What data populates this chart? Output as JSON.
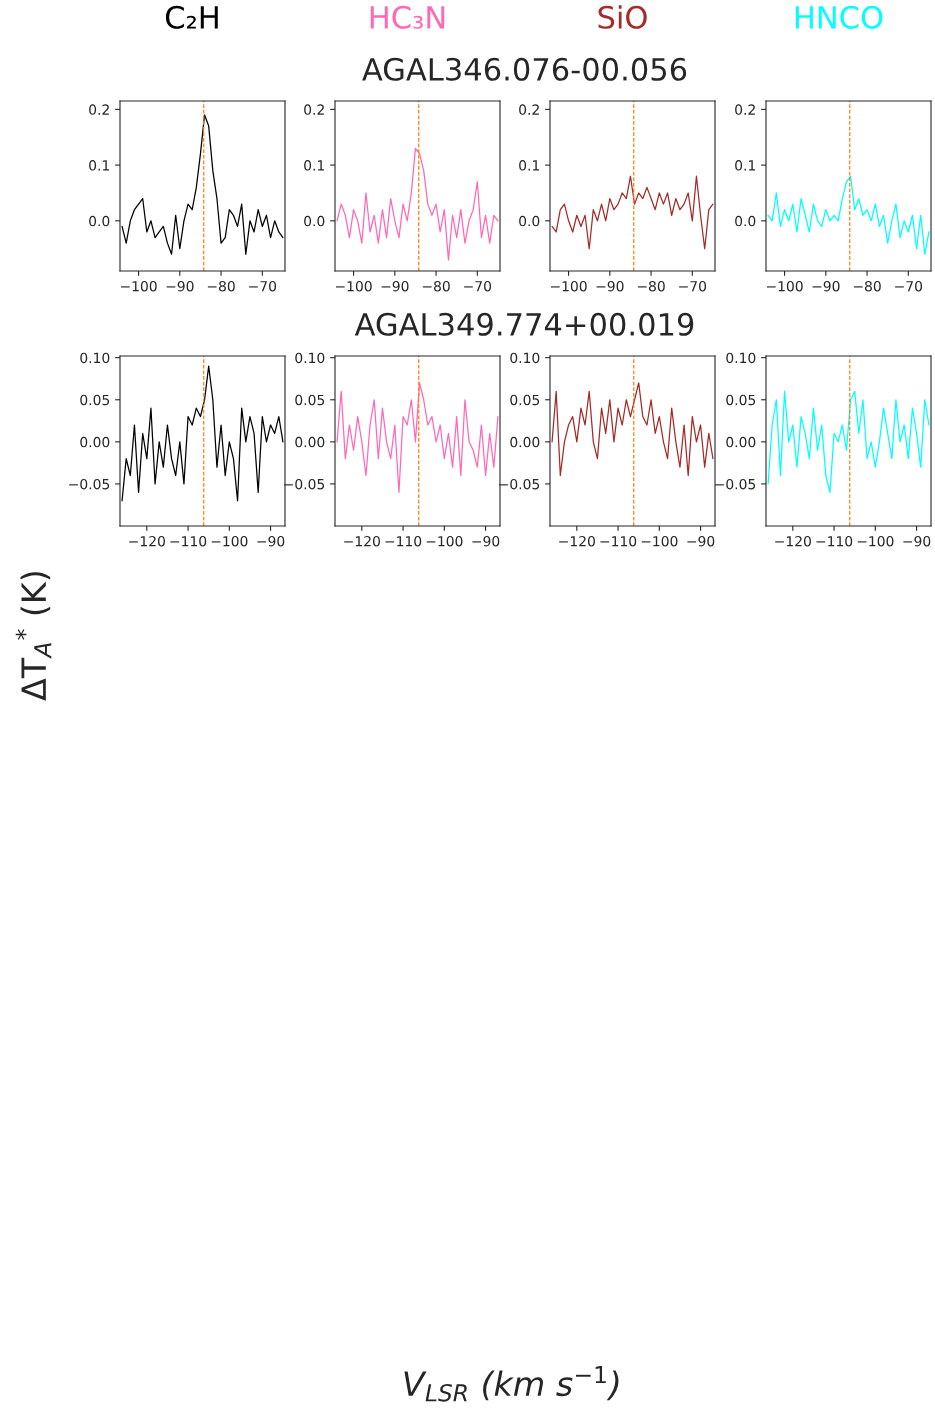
{
  "chart_data": [
    {
      "type": "line",
      "title": "C₂H",
      "xlabel": "V$_{LSR}$ (km s$^{−1}$)",
      "xlim": [
        -104.5,
        -64.5
      ],
      "ylim": [
        -0.09,
        0.215
      ],
      "xticks": [
        {
          "value": -100,
          "label": "−100"
        },
        {
          "value": -90,
          "label": "−90"
        },
        {
          "value": -80,
          "label": "−80"
        },
        {
          "value": -70,
          "label": "−70"
        }
      ],
      "yticks": [
        {
          "value": 0,
          "label": "0.0"
        },
        {
          "value": 0.1,
          "label": "0.1"
        },
        {
          "value": 0.2,
          "label": "0.2"
        }
      ],
      "grid": false,
      "line_style": "solid",
      "ref_lines": [
        {
          "axis": "x",
          "value": -84.2,
          "color": "#ff7f0e",
          "line_style": "dashed"
        }
      ],
      "x": [
        -104,
        -103,
        -102,
        -101,
        -100,
        -99,
        -98,
        -97,
        -96,
        -95,
        -94,
        -93,
        -92,
        -91,
        -90,
        -89,
        -88,
        -87,
        -86,
        -85,
        -84,
        -83,
        -82,
        -81,
        -80,
        -79,
        -78,
        -77,
        -76,
        -75,
        -74,
        -73,
        -72,
        -71,
        -70,
        -69,
        -68,
        -67,
        -66,
        -65
      ],
      "series": [
        {
          "color": "#000000",
          "values": [
            -0.01,
            -0.04,
            0.0,
            0.02,
            0.03,
            0.04,
            -0.02,
            0.0,
            -0.03,
            -0.02,
            -0.01,
            -0.04,
            -0.06,
            0.01,
            -0.05,
            0.0,
            0.03,
            0.02,
            0.06,
            0.12,
            0.19,
            0.17,
            0.09,
            0.04,
            -0.04,
            -0.03,
            0.02,
            0.01,
            -0.01,
            0.03,
            -0.06,
            0.0,
            -0.02,
            0.02,
            -0.01,
            0.01,
            -0.03,
            0.0,
            -0.02,
            -0.03
          ]
        }
      ]
    },
    {
      "type": "line",
      "title": "HC₃N",
      "subtitle": "AGAL346.076-00.056",
      "xlim": [
        -104.5,
        -64.5
      ],
      "ylim": [
        -0.09,
        0.215
      ],
      "xticks": [
        {
          "value": -100,
          "label": "−100"
        },
        {
          "value": -90,
          "label": "−90"
        },
        {
          "value": -80,
          "label": "−80"
        },
        {
          "value": -70,
          "label": "−70"
        }
      ],
      "yticks": [
        {
          "value": 0,
          "label": "0.0"
        },
        {
          "value": 0.1,
          "label": "0.1"
        },
        {
          "value": 0.2,
          "label": "0.2"
        }
      ],
      "grid": false,
      "line_style": "solid",
      "ref_lines": [
        {
          "axis": "x",
          "value": -84.2,
          "color": "#ff7f0e",
          "line_style": "dashed"
        }
      ],
      "x": [
        -104,
        -103,
        -102,
        -101,
        -100,
        -99,
        -98,
        -97,
        -96,
        -95,
        -94,
        -93,
        -92,
        -91,
        -90,
        -89,
        -88,
        -87,
        -86,
        -85,
        -84,
        -83,
        -82,
        -81,
        -80,
        -79,
        -78,
        -77,
        -76,
        -75,
        -74,
        -73,
        -72,
        -71,
        -70,
        -69,
        -68,
        -67,
        -66,
        -65
      ],
      "series": [
        {
          "color": "#ff69b4",
          "values": [
            0.0,
            0.03,
            0.01,
            -0.03,
            0.02,
            0.0,
            -0.04,
            0.05,
            -0.02,
            0.01,
            -0.04,
            0.02,
            -0.03,
            0.04,
            0.0,
            -0.03,
            0.03,
            0.0,
            0.05,
            0.13,
            0.12,
            0.09,
            0.03,
            0.01,
            0.03,
            -0.02,
            0.02,
            -0.07,
            0.01,
            -0.03,
            0.02,
            -0.04,
            0.0,
            0.02,
            0.07,
            -0.03,
            0.01,
            -0.04,
            0.01,
            0.0
          ]
        }
      ]
    },
    {
      "type": "line",
      "title": "SiO",
      "xlim": [
        -104.5,
        -64.5
      ],
      "ylim": [
        -0.09,
        0.215
      ],
      "xticks": [
        {
          "value": -100,
          "label": "−100"
        },
        {
          "value": -90,
          "label": "−90"
        },
        {
          "value": -80,
          "label": "−80"
        },
        {
          "value": -70,
          "label": "−70"
        }
      ],
      "yticks": [
        {
          "value": 0,
          "label": "0.0"
        },
        {
          "value": 0.1,
          "label": "0.1"
        },
        {
          "value": 0.2,
          "label": "0.2"
        }
      ],
      "grid": false,
      "line_style": "solid",
      "ref_lines": [
        {
          "axis": "x",
          "value": -84.2,
          "color": "#ff7f0e",
          "line_style": "dashed"
        }
      ],
      "x": [
        -104,
        -103,
        -102,
        -101,
        -100,
        -99,
        -98,
        -97,
        -96,
        -95,
        -94,
        -93,
        -92,
        -91,
        -90,
        -89,
        -88,
        -87,
        -86,
        -85,
        -84,
        -83,
        -82,
        -81,
        -80,
        -79,
        -78,
        -77,
        -76,
        -75,
        -74,
        -73,
        -72,
        -71,
        -70,
        -69,
        -68,
        -67,
        -66,
        -65
      ],
      "series": [
        {
          "color": "#a52a2a",
          "values": [
            -0.01,
            -0.02,
            0.02,
            0.03,
            0.0,
            -0.02,
            0.01,
            -0.01,
            0.01,
            -0.05,
            0.02,
            0.0,
            0.03,
            0.0,
            0.04,
            0.02,
            0.03,
            0.05,
            0.04,
            0.08,
            0.03,
            0.05,
            0.04,
            0.06,
            0.04,
            0.02,
            0.05,
            0.03,
            0.05,
            0.01,
            0.04,
            0.02,
            0.03,
            0.05,
            0.0,
            0.08,
            0.01,
            -0.05,
            0.02,
            0.03
          ]
        }
      ]
    },
    {
      "type": "line",
      "title": "HNCO",
      "xlim": [
        -104.5,
        -64.5
      ],
      "ylim": [
        -0.09,
        0.215
      ],
      "xticks": [
        {
          "value": -100,
          "label": "−100"
        },
        {
          "value": -90,
          "label": "−90"
        },
        {
          "value": -80,
          "label": "−80"
        },
        {
          "value": -70,
          "label": "−70"
        }
      ],
      "yticks": [
        {
          "value": 0,
          "label": "0.0"
        },
        {
          "value": 0.1,
          "label": "0.1"
        },
        {
          "value": 0.2,
          "label": "0.2"
        }
      ],
      "grid": false,
      "line_style": "solid",
      "ref_lines": [
        {
          "axis": "x",
          "value": -84.2,
          "color": "#ff7f0e",
          "line_style": "dashed"
        }
      ],
      "x": [
        -104,
        -103,
        -102,
        -101,
        -100,
        -99,
        -98,
        -97,
        -96,
        -95,
        -94,
        -93,
        -92,
        -91,
        -90,
        -89,
        -88,
        -87,
        -86,
        -85,
        -84,
        -83,
        -82,
        -81,
        -80,
        -79,
        -78,
        -77,
        -76,
        -75,
        -74,
        -73,
        -72,
        -71,
        -70,
        -69,
        -68,
        -67,
        -66,
        -65
      ],
      "series": [
        {
          "color": "#00ffff",
          "values": [
            0.01,
            0.0,
            0.05,
            -0.01,
            0.02,
            0.0,
            0.03,
            -0.02,
            0.04,
            0.01,
            -0.02,
            0.03,
            0.0,
            -0.01,
            0.02,
            0.0,
            0.01,
            0.0,
            0.04,
            0.07,
            0.08,
            0.02,
            0.04,
            0.01,
            0.02,
            0.0,
            0.03,
            -0.01,
            0.01,
            -0.04,
            0.0,
            0.03,
            -0.03,
            0.0,
            -0.02,
            0.01,
            -0.05,
            0.01,
            -0.06,
            -0.02
          ]
        }
      ]
    },
    {
      "type": "line",
      "ylabel": "ΔT$_{A}$$^{*}$ (K)",
      "xlim": [
        -126.5,
        -86.5
      ],
      "ylim": [
        -0.1,
        0.102
      ],
      "xticks": [
        {
          "value": -120,
          "label": "−120"
        },
        {
          "value": -110,
          "label": "−110"
        },
        {
          "value": -100,
          "label": "−100"
        },
        {
          "value": -90,
          "label": "−90"
        }
      ],
      "yticks": [
        {
          "value": -0.05,
          "label": "−0.05"
        },
        {
          "value": 0,
          "label": "0.00"
        },
        {
          "value": 0.05,
          "label": "0.05"
        },
        {
          "value": 0.1,
          "label": "0.10"
        }
      ],
      "grid": false,
      "line_style": "solid",
      "ref_lines": [
        {
          "axis": "x",
          "value": -106.2,
          "color": "#ff7f0e",
          "line_style": "dashed"
        }
      ],
      "x": [
        -126,
        -125,
        -124,
        -123,
        -122,
        -121,
        -120,
        -119,
        -118,
        -117,
        -116,
        -115,
        -114,
        -113,
        -112,
        -111,
        -110,
        -109,
        -108,
        -107,
        -106,
        -105,
        -104,
        -103,
        -102,
        -101,
        -100,
        -99,
        -98,
        -97,
        -96,
        -95,
        -94,
        -93,
        -92,
        -91,
        -90,
        -89,
        -88,
        -87
      ],
      "series": [
        {
          "color": "#000000",
          "values": [
            -0.07,
            -0.02,
            -0.04,
            0.02,
            -0.06,
            0.01,
            -0.02,
            0.04,
            -0.05,
            0.0,
            -0.03,
            0.02,
            -0.02,
            -0.04,
            0.0,
            -0.05,
            0.03,
            0.02,
            0.04,
            0.03,
            0.05,
            0.09,
            0.05,
            -0.03,
            0.02,
            -0.04,
            0.0,
            -0.02,
            -0.07,
            0.04,
            0.0,
            0.03,
            0.01,
            -0.06,
            0.03,
            0.0,
            0.02,
            0.01,
            0.03,
            0.0
          ]
        }
      ]
    },
    {
      "type": "line",
      "subtitle": "AGAL349.774+00.019",
      "xlim": [
        -126.5,
        -86.5
      ],
      "ylim": [
        -0.1,
        0.102
      ],
      "xticks": [
        {
          "value": -120,
          "label": "−120"
        },
        {
          "value": -110,
          "label": "−110"
        },
        {
          "value": -100,
          "label": "−100"
        },
        {
          "value": -90,
          "label": "−90"
        }
      ],
      "yticks": [
        {
          "value": -0.05,
          "label": "−0.05"
        },
        {
          "value": 0,
          "label": "0.00"
        },
        {
          "value": 0.05,
          "label": "0.05"
        },
        {
          "value": 0.1,
          "label": "0.10"
        }
      ],
      "grid": false,
      "line_style": "solid",
      "ref_lines": [
        {
          "axis": "x",
          "value": -106.2,
          "color": "#ff7f0e",
          "line_style": "dashed"
        }
      ],
      "x": [
        -126,
        -125,
        -124,
        -123,
        -122,
        -121,
        -120,
        -119,
        -118,
        -117,
        -116,
        -115,
        -114,
        -113,
        -112,
        -111,
        -110,
        -109,
        -108,
        -107,
        -106,
        -105,
        -104,
        -103,
        -102,
        -101,
        -100,
        -99,
        -98,
        -97,
        -96,
        -95,
        -94,
        -93,
        -92,
        -91,
        -90,
        -89,
        -88,
        -87
      ],
      "series": [
        {
          "color": "#ff69b4",
          "values": [
            0.0,
            0.06,
            -0.02,
            0.02,
            -0.01,
            0.03,
            0.0,
            -0.04,
            0.02,
            0.05,
            -0.02,
            0.04,
            0.0,
            -0.02,
            0.02,
            -0.06,
            0.03,
            0.02,
            0.05,
            0.0,
            0.07,
            0.05,
            0.02,
            0.03,
            0.0,
            0.02,
            -0.02,
            0.01,
            -0.03,
            0.03,
            -0.04,
            0.05,
            0.0,
            -0.01,
            -0.03,
            0.02,
            -0.04,
            0.01,
            -0.03,
            0.03
          ]
        }
      ]
    },
    {
      "type": "line",
      "xlim": [
        -126.5,
        -86.5
      ],
      "ylim": [
        -0.1,
        0.102
      ],
      "xticks": [
        {
          "value": -120,
          "label": "−120"
        },
        {
          "value": -110,
          "label": "−110"
        },
        {
          "value": -100,
          "label": "−100"
        },
        {
          "value": -90,
          "label": "−90"
        }
      ],
      "yticks": [
        {
          "value": -0.05,
          "label": "−0.05"
        },
        {
          "value": 0,
          "label": "0.00"
        },
        {
          "value": 0.05,
          "label": "0.05"
        },
        {
          "value": 0.1,
          "label": "0.10"
        }
      ],
      "grid": false,
      "line_style": "solid",
      "ref_lines": [
        {
          "axis": "x",
          "value": -106.2,
          "color": "#ff7f0e",
          "line_style": "dashed"
        }
      ],
      "x": [
        -126,
        -125,
        -124,
        -123,
        -122,
        -121,
        -120,
        -119,
        -118,
        -117,
        -116,
        -115,
        -114,
        -113,
        -112,
        -111,
        -110,
        -109,
        -108,
        -107,
        -106,
        -105,
        -104,
        -103,
        -102,
        -101,
        -100,
        -99,
        -98,
        -97,
        -96,
        -95,
        -94,
        -93,
        -92,
        -91,
        -90,
        -89,
        -88,
        -87
      ],
      "series": [
        {
          "color": "#a52a2a",
          "values": [
            0.0,
            0.06,
            -0.04,
            0.0,
            0.02,
            0.03,
            0.0,
            0.04,
            0.02,
            0.06,
            0.0,
            -0.02,
            0.04,
            0.01,
            0.05,
            0.0,
            0.04,
            0.02,
            0.05,
            0.03,
            0.05,
            0.07,
            0.03,
            0.02,
            0.05,
            0.01,
            0.03,
            0.0,
            -0.02,
            0.04,
            0.0,
            -0.03,
            0.02,
            -0.04,
            0.03,
            0.0,
            0.02,
            -0.03,
            0.01,
            -0.02
          ]
        }
      ]
    },
    {
      "type": "line",
      "xlim": [
        -126.5,
        -86.5
      ],
      "ylim": [
        -0.1,
        0.102
      ],
      "xticks": [
        {
          "value": -120,
          "label": "−120"
        },
        {
          "value": -110,
          "label": "−110"
        },
        {
          "value": -100,
          "label": "−100"
        },
        {
          "value": -90,
          "label": "−90"
        }
      ],
      "yticks": [
        {
          "value": -0.05,
          "label": "−0.05"
        },
        {
          "value": 0,
          "label": "0.00"
        },
        {
          "value": 0.05,
          "label": "0.05"
        },
        {
          "value": 0.1,
          "label": "0.10"
        }
      ],
      "grid": false,
      "line_style": "solid",
      "ref_lines": [
        {
          "axis": "x",
          "value": -106.2,
          "color": "#ff7f0e",
          "line_style": "dashed"
        }
      ],
      "x": [
        -126,
        -125,
        -124,
        -123,
        -122,
        -121,
        -120,
        -119,
        -118,
        -117,
        -116,
        -115,
        -114,
        -113,
        -112,
        -111,
        -110,
        -109,
        -108,
        -107,
        -106,
        -105,
        -104,
        -103,
        -102,
        -101,
        -100,
        -99,
        -98,
        -97,
        -96,
        -95,
        -94,
        -93,
        -92,
        -91,
        -90,
        -89,
        -88,
        -87
      ],
      "series": [
        {
          "color": "#00ffff",
          "values": [
            -0.05,
            0.02,
            0.05,
            -0.04,
            0.06,
            0.0,
            0.02,
            -0.03,
            0.03,
            0.01,
            -0.02,
            0.04,
            -0.01,
            0.02,
            -0.04,
            -0.06,
            0.01,
            0.0,
            0.02,
            -0.01,
            0.05,
            0.06,
            0.01,
            0.05,
            -0.02,
            0.0,
            -0.03,
            0.0,
            0.04,
            0.01,
            -0.02,
            0.05,
            0.0,
            0.02,
            -0.02,
            0.04,
            0.01,
            -0.03,
            0.05,
            0.02
          ]
        }
      ]
    }
  ]
}
